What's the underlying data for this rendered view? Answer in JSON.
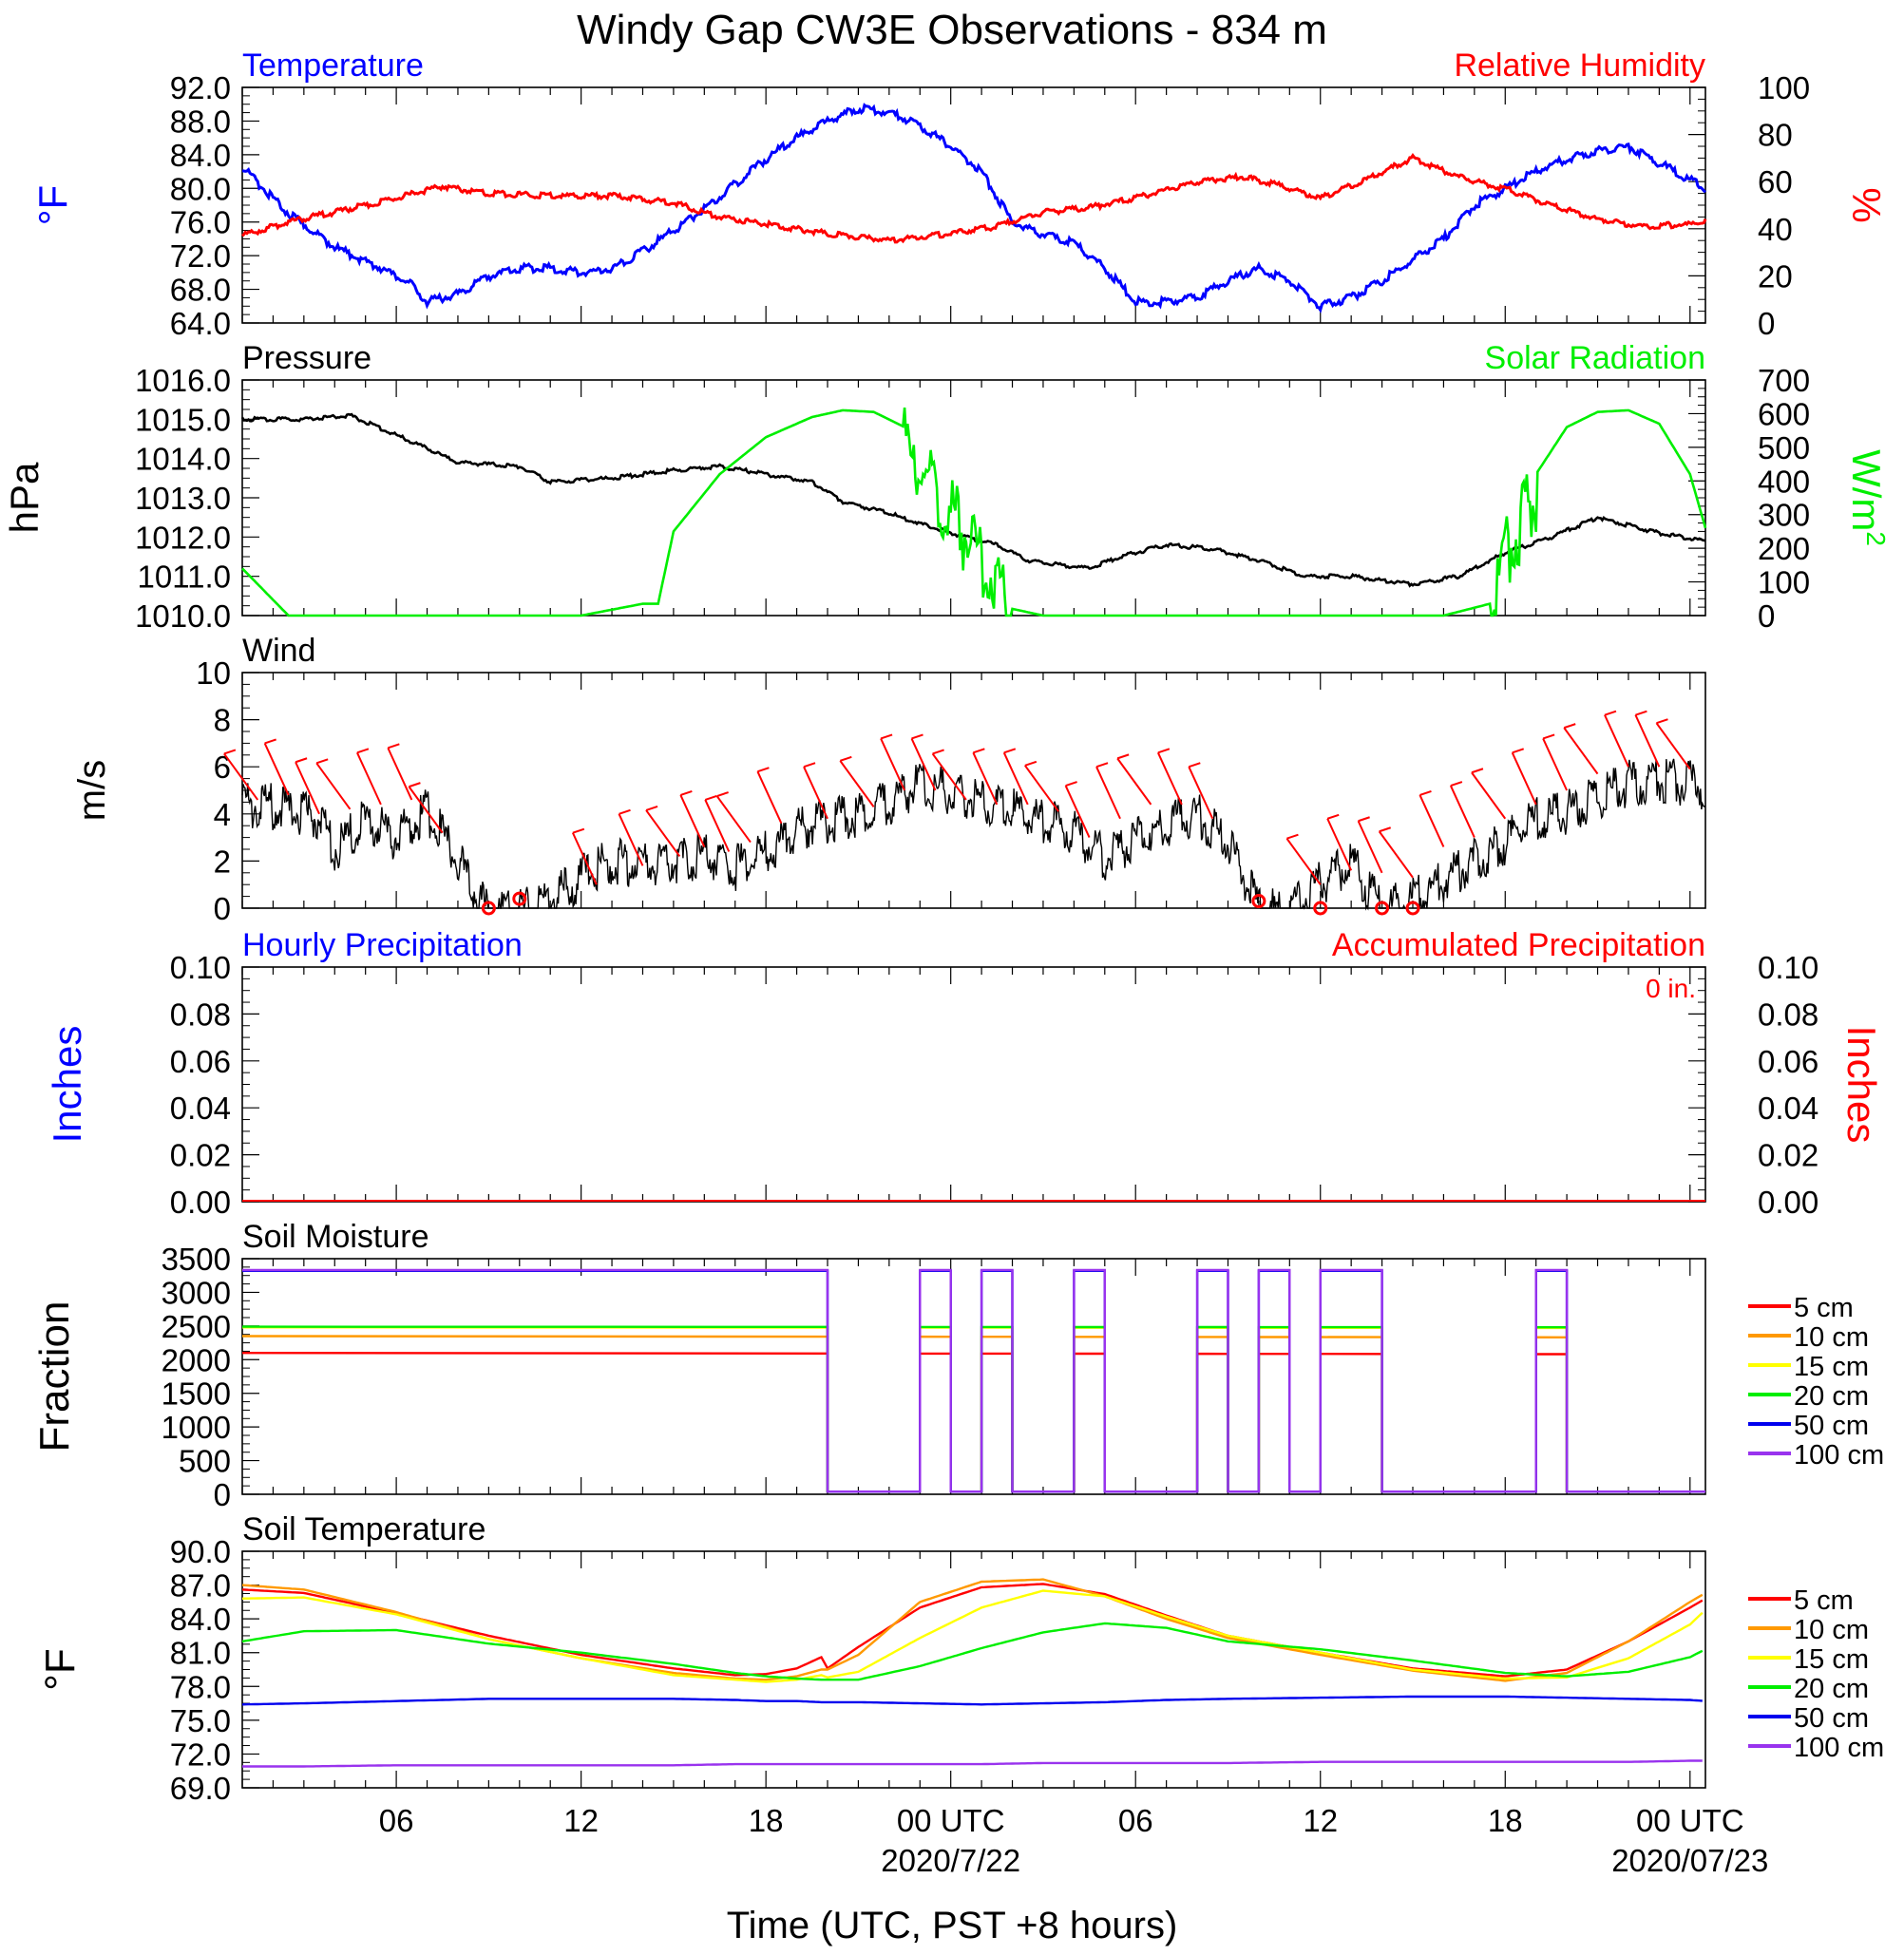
{
  "title": "Windy Gap CW3E Observations - 834 m",
  "xaxis": {
    "title": "Time (UTC, PST +8 hours)",
    "tick_labels": [
      "06",
      "12",
      "18",
      "00 UTC",
      "06",
      "12",
      "18",
      "00 UTC"
    ],
    "date_labels": [
      "2020/7/22",
      "2020/07/23"
    ]
  },
  "colors": {
    "temperature": "#0000ff",
    "humidity": "#ff0000",
    "pressure": "#000000",
    "solar": "#00ee00",
    "wind": "#000000",
    "barb": "#ff0000",
    "d5": "#ff0000",
    "d10": "#ff9900",
    "d15": "#ffff00",
    "d20": "#00ee00",
    "d50": "#0000ee",
    "d100": "#9933ee"
  },
  "chart_data": [
    {
      "type": "line",
      "left_title": "Temperature",
      "right_title": "Relative Humidity",
      "ylabel_left": "°F",
      "ylabel_right": "%",
      "ylim_left": [
        64.0,
        92.0
      ],
      "yticks_left": [
        "64.0",
        "68.0",
        "72.0",
        "76.0",
        "80.0",
        "84.0",
        "88.0",
        "92.0"
      ],
      "ylim_right": [
        0,
        100
      ],
      "yticks_right": [
        "0",
        "20",
        "40",
        "60",
        "80",
        "100"
      ],
      "series": [
        {
          "name": "Temperature",
          "axis": "left",
          "x": [
            1.0,
            2.5,
            4.0,
            5.5,
            6.5,
            7.0,
            8.0,
            9.0,
            10.0,
            11.0,
            12.0,
            13.0,
            14.0,
            15.0,
            16.0,
            17.0,
            18.0,
            19.0,
            20.0,
            21.0,
            22.0,
            23.0,
            24.0,
            25.0,
            26.0,
            27.0,
            28.0,
            29.0,
            30.0,
            31.0,
            32.0,
            33.0,
            34.0,
            35.0,
            36.0,
            37.0,
            38.0,
            39.0,
            40.0,
            41.0,
            42.0,
            43.0,
            44.0,
            45.0,
            46.0,
            47.0,
            48.0,
            48.5
          ],
          "values": [
            82.5,
            77.0,
            73.0,
            70.5,
            68.5,
            66.5,
            67.5,
            69.5,
            70.5,
            70.5,
            70.0,
            70.5,
            72.5,
            75.0,
            77.5,
            80.5,
            83.5,
            86.0,
            88.0,
            89.5,
            89.0,
            87.5,
            85.0,
            82.0,
            76.0,
            74.5,
            73.5,
            70.5,
            66.5,
            66.5,
            67.0,
            69.0,
            70.5,
            69.0,
            66.0,
            67.0,
            69.0,
            71.5,
            74.0,
            78.0,
            80.0,
            82.0,
            83.5,
            84.5,
            85.0,
            83.0,
            81.0,
            80.0
          ]
        },
        {
          "name": "Relative Humidity",
          "axis": "right",
          "x": [
            1.0,
            2.5,
            4.0,
            6.0,
            7.5,
            9.0,
            11.0,
            13.0,
            15.0,
            16.5,
            18.0,
            20.0,
            22.0,
            24.0,
            25.5,
            27.0,
            28.5,
            30.0,
            32.0,
            33.5,
            34.5,
            36.0,
            37.5,
            39.0,
            40.5,
            42.0,
            43.5,
            45.0,
            46.5,
            48.0,
            48.5
          ],
          "values": [
            37,
            43,
            47,
            53,
            58,
            55,
            54,
            54,
            51,
            45,
            42,
            38,
            35,
            38,
            41,
            47,
            49,
            53,
            60,
            62,
            59,
            53,
            61,
            70,
            62,
            57,
            50,
            44,
            41,
            42,
            43
          ]
        }
      ]
    },
    {
      "type": "line",
      "left_title": "Pressure",
      "right_title": "Solar Radiation",
      "ylabel_left": "hPa",
      "ylabel_right": "W/m",
      "ylabel_right_sup": "2",
      "ylim_left": [
        1010.0,
        1016.0
      ],
      "yticks_left": [
        "1010.0",
        "1011.0",
        "1012.0",
        "1013.0",
        "1014.0",
        "1015.0",
        "1016.0"
      ],
      "ylim_right": [
        0,
        700
      ],
      "yticks_right": [
        "0",
        "100",
        "200",
        "300",
        "400",
        "500",
        "600",
        "700"
      ],
      "series": [
        {
          "name": "Pressure",
          "axis": "left",
          "x": [
            1.0,
            3.0,
            4.5,
            6.0,
            8.0,
            10.0,
            11.0,
            13.0,
            15.0,
            16.5,
            18.0,
            19.5,
            20.5,
            22.0,
            24.0,
            25.5,
            26.5,
            28.5,
            29.5,
            31.0,
            32.5,
            34.0,
            35.5,
            37.0,
            39.0,
            40.5,
            42.0,
            43.5,
            45.0,
            47.0,
            48.5
          ],
          "values": [
            1015.0,
            1015.0,
            1015.1,
            1014.6,
            1013.9,
            1013.8,
            1013.4,
            1013.5,
            1013.7,
            1013.8,
            1013.6,
            1013.4,
            1012.9,
            1012.6,
            1012.1,
            1011.8,
            1011.4,
            1011.2,
            1011.5,
            1011.8,
            1011.7,
            1011.4,
            1011.0,
            1011.0,
            1010.8,
            1011.0,
            1011.6,
            1012.0,
            1012.5,
            1012.1,
            1011.9
          ]
        },
        {
          "name": "Solar Radiation",
          "axis": "right",
          "x": [
            1.0,
            2.5,
            12.0,
            14.0,
            14.5,
            15.0,
            16.5,
            18.0,
            19.5,
            20.5,
            21.5,
            22.5,
            23.5,
            24.5,
            25.5,
            26.0,
            27.0,
            40.0,
            41.5,
            42.0,
            43.0,
            44.0,
            45.0,
            46.0,
            47.0,
            48.0,
            48.5
          ],
          "values": [
            140,
            0,
            0,
            35,
            35,
            250,
            420,
            530,
            590,
            610,
            605,
            560,
            430,
            300,
            160,
            20,
            0,
            0,
            35,
            250,
            420,
            560,
            605,
            610,
            570,
            420,
            260
          ]
        }
      ]
    },
    {
      "type": "line",
      "left_title": "Wind",
      "ylabel_left": "m/s",
      "ylim_left": [
        0,
        10
      ],
      "yticks_left": [
        "0",
        "2",
        "4",
        "6",
        "8",
        "10"
      ],
      "series": [
        {
          "name": "Wind",
          "axis": "left",
          "x": [
            1.0,
            2.0,
            3.5,
            4.0,
            5.0,
            6.0,
            7.0,
            8.0,
            9.0,
            10.0,
            11.0,
            12.0,
            13.0,
            14.0,
            15.0,
            16.0,
            17.0,
            18.0,
            19.0,
            20.0,
            21.0,
            22.0,
            23.0,
            24.0,
            25.0,
            26.0,
            27.0,
            28.0,
            29.0,
            30.0,
            31.0,
            32.0,
            33.0,
            34.0,
            35.0,
            36.0,
            37.0,
            38.0,
            39.0,
            40.0,
            41.0,
            42.0,
            43.0,
            44.0,
            45.0,
            46.0,
            47.0,
            48.0,
            48.5
          ],
          "values": [
            4.9,
            4.8,
            4.3,
            3.0,
            4.2,
            3.5,
            4.6,
            2.5,
            0.2,
            0.3,
            0.8,
            1.8,
            2.5,
            2.3,
            2.4,
            2.8,
            2.2,
            2.9,
            3.8,
            4.2,
            4.5,
            5.0,
            5.8,
            5.4,
            5.0,
            4.6,
            4.2,
            3.8,
            2.6,
            3.5,
            4.0,
            4.5,
            3.2,
            0.6,
            0.3,
            1.6,
            2.4,
            0.4,
            0.8,
            1.7,
            2.5,
            3.3,
            4.2,
            4.6,
            5.2,
            5.8,
            5.9,
            5.8,
            5.6
          ]
        },
        {
          "name": "Barbs",
          "axis": "left",
          "barb_x": [
            1.5,
            2.5,
            3.5,
            4.5,
            5.5,
            6.5,
            7.5,
            12.5,
            14,
            15.2,
            16,
            16.8,
            17.5,
            18.5,
            20,
            21.5,
            22.5,
            23.5,
            24.5,
            25.5,
            26.5,
            27.5,
            28.5,
            29.5,
            30.5,
            31.5,
            32.5,
            36,
            37,
            38,
            39,
            40,
            41,
            42,
            43,
            44,
            45,
            46,
            47,
            48
          ],
          "barb_y": [
            4.6,
            4.8,
            4.0,
            4.2,
            4.4,
            4.6,
            3.2,
            1.0,
            1.8,
            2.2,
            2.6,
            2.4,
            2.8,
            3.6,
            3.8,
            4.3,
            5.0,
            5.0,
            4.6,
            4.4,
            4.4,
            4.1,
            3.0,
            3.8,
            4.4,
            4.4,
            3.8,
            1.0,
            1.6,
            1.5,
            1.3,
            2.6,
            3.0,
            3.8,
            4.4,
            5.0,
            5.7,
            6.0,
            6.0,
            5.9
          ]
        },
        {
          "name": "Calm",
          "axis": "left",
          "calm_x": [
            9.0,
            10.0,
            34.0,
            36.0,
            38.0,
            39.0
          ],
          "calm_y": [
            0.0,
            0.4,
            0.3,
            0.0,
            0.0,
            0.0
          ]
        }
      ]
    },
    {
      "type": "line",
      "left_title": "Hourly Precipitation",
      "right_title": "Accumulated Precipitation",
      "annotation": "0 in.",
      "ylabel_left": "Inches",
      "ylabel_right": "Inches",
      "ylim_left": [
        0.0,
        0.1
      ],
      "yticks_left": [
        "0.00",
        "0.02",
        "0.04",
        "0.06",
        "0.08",
        "0.10"
      ],
      "ylim_right": [
        0.0,
        0.1
      ],
      "yticks_right": [
        "0.00",
        "0.02",
        "0.04",
        "0.06",
        "0.08",
        "0.10"
      ],
      "series": [
        {
          "name": "Hourly Precipitation",
          "axis": "left",
          "x": [
            1.0,
            48.5
          ],
          "values": [
            0.0,
            0.0
          ]
        },
        {
          "name": "Accumulated Precipitation",
          "axis": "right",
          "x": [
            1.0,
            48.5
          ],
          "values": [
            0.0,
            0.0
          ]
        }
      ]
    },
    {
      "type": "line",
      "left_title": "Soil Moisture",
      "ylabel_left": "Fraction",
      "ylim_left": [
        0,
        3500
      ],
      "yticks_left": [
        "0",
        "500",
        "1000",
        "1500",
        "2000",
        "2500",
        "3000",
        "3500"
      ],
      "legend": [
        "5 cm",
        "10 cm",
        "15 cm",
        "20 cm",
        "50 cm",
        "100 cm"
      ],
      "series": [
        {
          "name": "5 cm",
          "level": 2090,
          "start": 2100,
          "end": 2080
        },
        {
          "name": "10 cm",
          "level": 2340,
          "start": 2350,
          "end": 2330
        },
        {
          "name": "15 cm",
          "level": 2470,
          "start": 2480,
          "end": 2470
        },
        {
          "name": "20 cm",
          "level": 2480,
          "start": 2490,
          "end": 2480
        },
        {
          "name": "50 cm",
          "level": 3320,
          "start": 3320,
          "end": 3320
        },
        {
          "name": "100 cm",
          "level": 3330,
          "start": 3330,
          "end": 3330
        }
      ],
      "on_intervals": [
        [
          1.0,
          20.0
        ],
        [
          23.0,
          24.0
        ],
        [
          25.0,
          26.0
        ],
        [
          28.0,
          29.0
        ],
        [
          32.0,
          33.0
        ],
        [
          34.0,
          35.0
        ],
        [
          36.0,
          38.0
        ],
        [
          43.0,
          44.0
        ]
      ],
      "dropout_value": 40
    },
    {
      "type": "line",
      "left_title": "Soil Temperature",
      "ylabel_left": "°F",
      "ylim_left": [
        69.0,
        90.0
      ],
      "yticks_left": [
        "69.0",
        "72.0",
        "75.0",
        "78.0",
        "81.0",
        "84.0",
        "87.0",
        "90.0"
      ],
      "legend": [
        "5 cm",
        "10 cm",
        "15 cm",
        "20 cm",
        "50 cm",
        "100 cm"
      ],
      "x": [
        1,
        3,
        6,
        9,
        12,
        15,
        17,
        18,
        19,
        19.8,
        20,
        21,
        23,
        25,
        27,
        29,
        31,
        33,
        36,
        39,
        42,
        44,
        46,
        48,
        48.5
      ],
      "series": [
        {
          "name": "5 cm",
          "values": [
            86.6,
            86.3,
            84.5,
            82.5,
            80.8,
            79.6,
            79.0,
            79.1,
            79.6,
            80.6,
            79.6,
            81.5,
            85.0,
            86.8,
            87.1,
            86.2,
            84.3,
            82.5,
            81.0,
            79.6,
            78.9,
            79.5,
            82.0,
            85.0,
            85.8
          ]
        },
        {
          "name": "10 cm",
          "values": [
            87.0,
            86.6,
            84.6,
            82.2,
            80.5,
            79.2,
            78.7,
            78.6,
            78.9,
            79.5,
            79.5,
            80.8,
            85.5,
            87.3,
            87.5,
            86.0,
            84.0,
            82.3,
            80.8,
            79.4,
            78.5,
            79.2,
            82.0,
            85.5,
            86.3
          ]
        },
        {
          "name": "15 cm",
          "values": [
            85.8,
            85.9,
            84.4,
            82.2,
            80.5,
            79.0,
            78.6,
            78.4,
            78.6,
            79.0,
            78.8,
            79.3,
            82.3,
            85.0,
            86.5,
            86.0,
            84.2,
            82.5,
            81.0,
            79.5,
            78.7,
            78.8,
            80.5,
            83.5,
            84.8
          ]
        },
        {
          "name": "20 cm",
          "values": [
            82.0,
            82.9,
            83.0,
            81.8,
            81.0,
            80.0,
            79.2,
            78.9,
            78.7,
            78.6,
            78.6,
            78.6,
            79.8,
            81.4,
            82.8,
            83.6,
            83.2,
            82.0,
            81.3,
            80.3,
            79.2,
            78.9,
            79.3,
            80.6,
            81.3
          ]
        },
        {
          "name": "50 cm",
          "values": [
            76.4,
            76.5,
            76.7,
            76.9,
            76.9,
            76.9,
            76.8,
            76.7,
            76.7,
            76.6,
            76.6,
            76.6,
            76.5,
            76.4,
            76.5,
            76.6,
            76.8,
            76.9,
            77.0,
            77.1,
            77.1,
            77.0,
            76.9,
            76.8,
            76.7
          ]
        },
        {
          "name": "100 cm",
          "values": [
            70.9,
            70.9,
            71.0,
            71.0,
            71.0,
            71.0,
            71.1,
            71.1,
            71.1,
            71.1,
            71.1,
            71.1,
            71.1,
            71.1,
            71.2,
            71.2,
            71.2,
            71.2,
            71.3,
            71.3,
            71.3,
            71.3,
            71.3,
            71.4,
            71.4
          ]
        }
      ]
    }
  ]
}
